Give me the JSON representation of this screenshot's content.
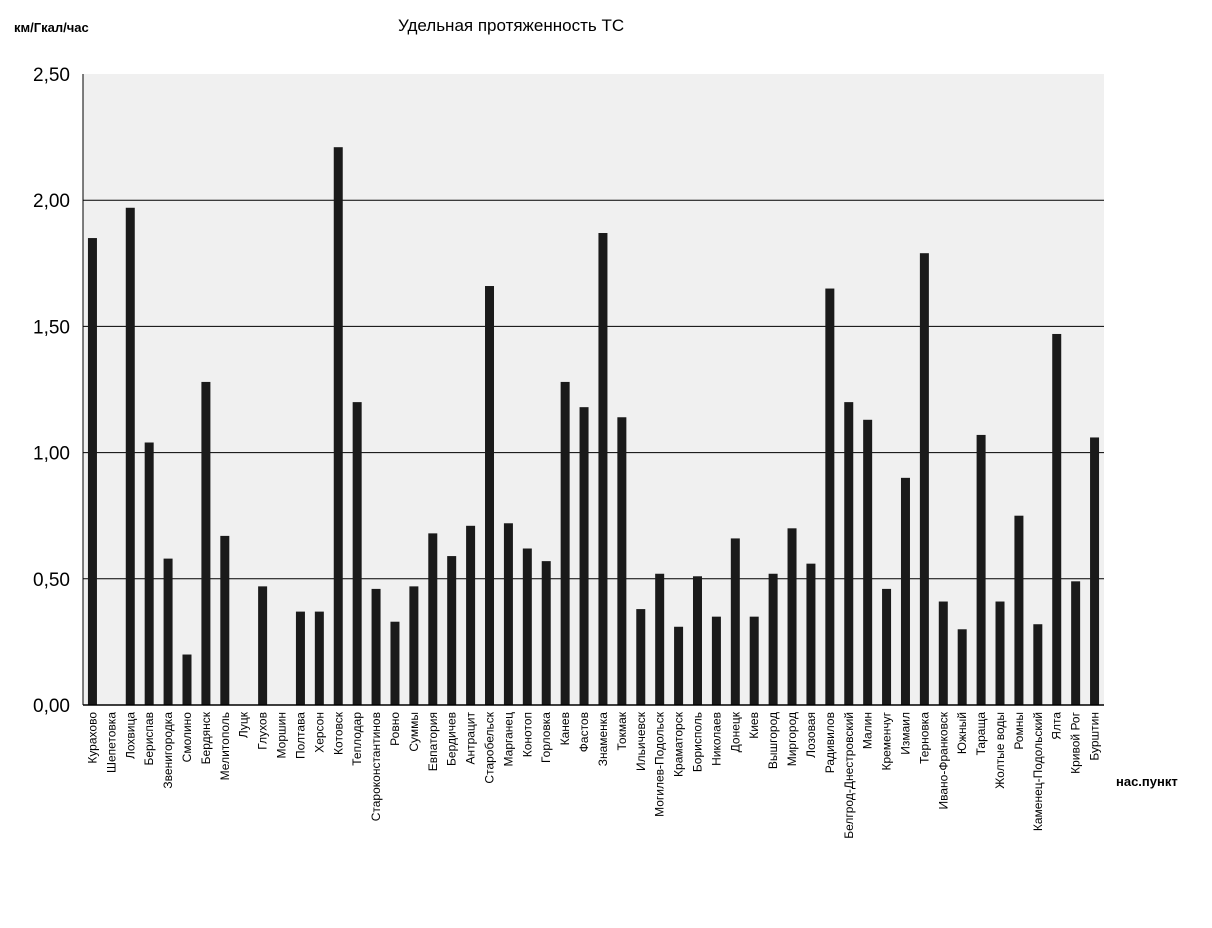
{
  "chart_data": {
    "type": "bar",
    "title": "Удельная протяженность ТС",
    "ylabel": "км/Гкал/час",
    "xlabel": "нас.пункт",
    "ylim": [
      0,
      2.5
    ],
    "yticks": [
      "0,00",
      "0,50",
      "1,00",
      "1,50",
      "2,00",
      "2,50"
    ],
    "grid": true,
    "colors": {
      "bar": "#1a1a1a",
      "plot_bg": "#f0f0f0",
      "grid": "#000000"
    },
    "categories": [
      "Курахово",
      "Шепетовка",
      "Лохвица",
      "Бериспав",
      "Звенигородка",
      "Смолино",
      "Бердянск",
      "Мелитополь",
      "Луцк",
      "Глухов",
      "Моршин",
      "Полтава",
      "Херсон",
      "Котовск",
      "Теплодар",
      "Староконстантинов",
      "Ровно",
      "Суммы",
      "Евпатория",
      "Бердичев",
      "Антрацит",
      "Старобельск",
      "Марганец",
      "Конотоп",
      "Горловка",
      "Канев",
      "Фастов",
      "Знаменка",
      "Токмак",
      "Ильичевск",
      "Могилев-Подольск",
      "Краматорск",
      "Борисполь",
      "Николаев",
      "Донецк",
      "Киев",
      "Вышгород",
      "Миргород",
      "Лозовая",
      "Радивилов",
      "Белгрод-Днестровский",
      "Малин",
      "Кременчуг",
      "Измаил",
      "Терновка",
      "Ивано-Франковск",
      "Южный",
      "Тараща",
      "Жолтые воды",
      "Ромны",
      "Каменец-Подольский",
      "Ялта",
      "Кривой Рог",
      "Бурштин"
    ],
    "values": [
      1.85,
      0,
      1.97,
      1.04,
      0.58,
      0.2,
      1.28,
      0.67,
      0,
      0.47,
      0,
      0.37,
      0.37,
      2.21,
      1.2,
      0.46,
      0.33,
      0.47,
      0.68,
      0.59,
      0.71,
      1.66,
      0.72,
      0.62,
      0.57,
      1.28,
      1.18,
      1.87,
      1.14,
      0.38,
      0.52,
      0.31,
      0.51,
      0.35,
      0.66,
      0.35,
      0.52,
      0.7,
      0.56,
      1.65,
      1.2,
      1.13,
      0.46,
      0.9,
      1.79,
      0.41,
      0.3,
      1.07,
      0.41,
      0.75,
      0.32,
      1.47,
      0.49,
      1.06
    ]
  }
}
